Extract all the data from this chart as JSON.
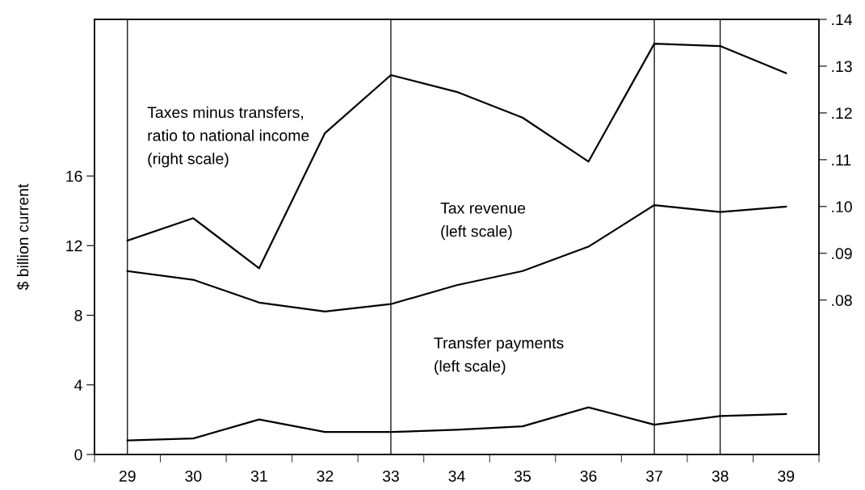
{
  "chart_data": {
    "type": "line",
    "categories": [
      "29",
      "30",
      "31",
      "32",
      "33",
      "34",
      "35",
      "36",
      "37",
      "38",
      "39"
    ],
    "ylabel": "$ billion current",
    "series": [
      {
        "name": "Taxes minus transfers,\nratio to national income\n(right scale)",
        "color": "#000000",
        "axis": "y2",
        "values": [
          0.0927,
          0.0975,
          0.0868,
          0.1157,
          0.1281,
          0.1245,
          0.119,
          0.1096,
          0.1348,
          0.1343,
          0.1285
        ]
      },
      {
        "name": "Tax revenue\n(left scale)",
        "color": "#000000",
        "values": [
          10.54,
          10.04,
          8.73,
          8.22,
          8.64,
          9.73,
          10.54,
          11.94,
          14.33,
          13.93,
          14.24
        ]
      },
      {
        "name": "Transfer payments\n(left scale)",
        "color": "#000000",
        "values": [
          0.81,
          0.92,
          2.01,
          1.29,
          1.29,
          1.42,
          1.62,
          2.71,
          1.71,
          2.21,
          2.32
        ]
      }
    ],
    "ylim": [
      0,
      25
    ],
    "yticks": [
      0,
      4,
      8,
      12,
      16
    ],
    "y2lim": [
      0.047,
      0.14
    ],
    "y2ticks": [
      {
        "value": 0.08,
        "label": ".08"
      },
      {
        "value": 0.09,
        "label": ".09"
      },
      {
        "value": 0.1,
        "label": ".10"
      },
      {
        "value": 0.11,
        "label": ".11"
      },
      {
        "value": 0.12,
        "label": ".12"
      },
      {
        "value": 0.13,
        "label": ".13"
      },
      {
        "value": 0.14,
        "label": ".14"
      }
    ],
    "ref_lines": [
      {
        "axis": "x",
        "value": "29",
        "color": "#000000"
      },
      {
        "axis": "x",
        "value": "33",
        "color": "#000000"
      },
      {
        "axis": "x",
        "value": "37",
        "color": "#000000"
      },
      {
        "axis": "x",
        "value": "38",
        "color": "#000000"
      }
    ],
    "grid": false,
    "legend": false,
    "marker": "none",
    "line_style": "solid"
  }
}
